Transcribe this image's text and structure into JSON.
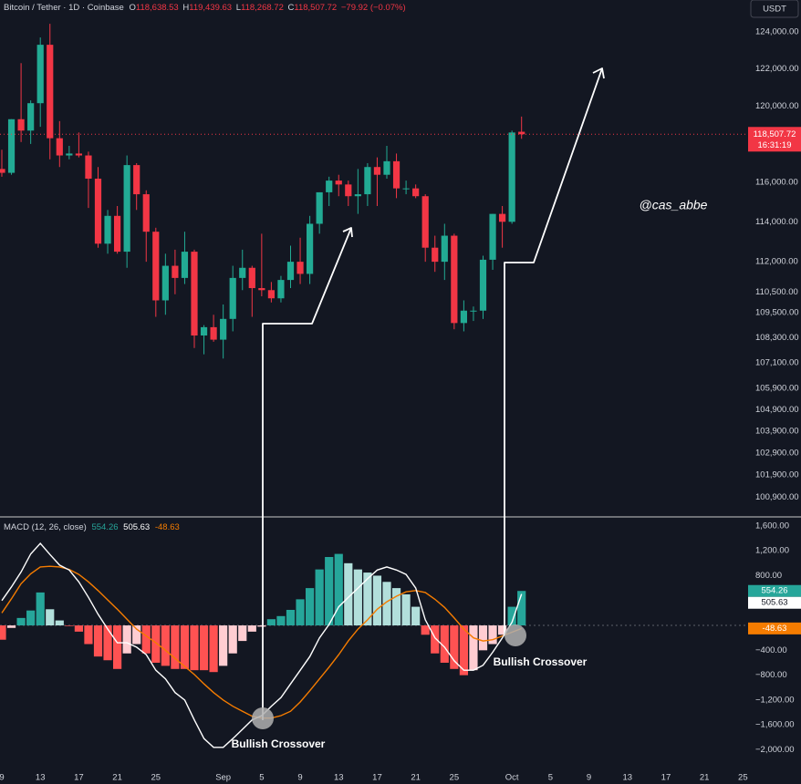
{
  "header": {
    "symbol": "Bitcoin / Tether · 1D · Coinbase",
    "open": {
      "label": "O",
      "value": "118,638.53"
    },
    "high": {
      "label": "H",
      "value": "119,439.63"
    },
    "low": {
      "label": "L",
      "value": "118,268.72"
    },
    "close": {
      "label": "C",
      "value": "118,507.72"
    },
    "change": "−79.92 (−0.07%)"
  },
  "currency": "USDT",
  "watermark": "@cas_abbe",
  "annotations": [
    "Bullish Crossover",
    "Bullish Crossover"
  ],
  "chart_data": [
    {
      "type": "candlestick",
      "categories": [
        "9",
        null,
        null,
        null,
        "13",
        null,
        null,
        null,
        "17",
        null,
        null,
        null,
        "21",
        null,
        null,
        null,
        "25",
        null,
        null,
        null,
        null,
        null,
        null,
        "Sep",
        null,
        null,
        null,
        "5",
        null,
        null,
        null,
        "9",
        null,
        null,
        null,
        "13",
        null,
        null,
        null,
        "17",
        null,
        null,
        null,
        "21",
        null,
        null,
        null,
        "25",
        null,
        null,
        null,
        null,
        null,
        "Oct",
        null,
        null,
        null,
        "5",
        null,
        null,
        null,
        "9",
        null,
        null,
        null,
        "13",
        null,
        null,
        null,
        "17",
        null,
        null,
        null,
        "21",
        null,
        null,
        null,
        "25"
      ],
      "open": [
        116700,
        116500,
        119300,
        118700,
        120150,
        123300,
        118300,
        117400,
        117500,
        117400,
        116200,
        112900,
        114300,
        112500,
        116900,
        115400,
        113500,
        110100,
        111800,
        111200,
        112500,
        108400,
        108800,
        108200,
        109200,
        111200,
        111700,
        110700,
        110600,
        110200,
        111100,
        112000,
        111400,
        113900,
        115500,
        116100,
        115900,
        115300,
        115400,
        116800,
        116400,
        117100,
        115700,
        115700,
        115300,
        112700,
        112000,
        113300,
        109000,
        109600,
        109600,
        112100,
        114400,
        114000,
        118638.53,
        null,
        null,
        null,
        null,
        null,
        null,
        null,
        null,
        null,
        null,
        null,
        null,
        null,
        null,
        null,
        null,
        null,
        null,
        null,
        null,
        null,
        null,
        null
      ],
      "high": [
        117700,
        119300,
        122300,
        120300,
        123700,
        124450,
        119200,
        117900,
        118600,
        117600,
        116800,
        114600,
        114800,
        117400,
        117000,
        115600,
        113700,
        112400,
        112600,
        113500,
        112600,
        108900,
        109400,
        109900,
        111800,
        112600,
        111800,
        113400,
        111000,
        111300,
        112800,
        113200,
        114300,
        115500,
        116300,
        116400,
        116100,
        116700,
        117000,
        117300,
        117900,
        117500,
        116100,
        115900,
        115400,
        113300,
        113900,
        113400,
        110100,
        109800,
        112300,
        114400,
        114800,
        118700,
        119439.63,
        null,
        null,
        null,
        null,
        null,
        null,
        null,
        null,
        null,
        null,
        null,
        null,
        null,
        null,
        null,
        null,
        null,
        null,
        null,
        null,
        null,
        null,
        null
      ],
      "low": [
        116300,
        116400,
        118100,
        118000,
        118900,
        117200,
        116800,
        117200,
        117300,
        114700,
        112700,
        112400,
        112400,
        111700,
        114600,
        112000,
        109300,
        109400,
        110400,
        110900,
        107800,
        107500,
        108100,
        107300,
        108600,
        110600,
        109300,
        110300,
        110000,
        110000,
        110700,
        110900,
        110900,
        113400,
        114800,
        115300,
        114800,
        114400,
        114800,
        114800,
        116200,
        115200,
        115400,
        115200,
        112000,
        111500,
        111100,
        108700,
        108600,
        109100,
        109200,
        111600,
        112700,
        113900,
        118268.72,
        null,
        null,
        null,
        null,
        null,
        null,
        null,
        null,
        null,
        null,
        null,
        null,
        null,
        null,
        null,
        null,
        null,
        null,
        null,
        null,
        null,
        null,
        null
      ],
      "close": [
        116500,
        119300,
        118700,
        120150,
        123300,
        118300,
        117400,
        117500,
        117400,
        116200,
        112900,
        114300,
        112500,
        116900,
        115400,
        113500,
        110100,
        111800,
        111200,
        112500,
        108400,
        108800,
        108200,
        109200,
        111200,
        111700,
        110700,
        110600,
        110200,
        111100,
        112000,
        111400,
        113900,
        115500,
        116100,
        115900,
        115300,
        115400,
        116800,
        116400,
        117100,
        115700,
        115700,
        115300,
        112700,
        112000,
        113300,
        109000,
        109600,
        109600,
        112100,
        114400,
        114000,
        118600,
        118507.72,
        null,
        null,
        null,
        null,
        null,
        null,
        null,
        null,
        null,
        null,
        null,
        null,
        null,
        null,
        null,
        null,
        null,
        null,
        null,
        null,
        null,
        null,
        null
      ],
      "up_color": "#22ab94",
      "down_color": "#f23645",
      "log_scale": true,
      "grid": false,
      "ylim": [
        100030,
        125770
      ],
      "yticks": [
        {
          "value": 124000,
          "label": "124,000.00"
        },
        {
          "value": 122000,
          "label": "122,000.00"
        },
        {
          "value": 120000,
          "label": "120,000.00"
        },
        {
          "value": 116000,
          "label": "116,000.00"
        },
        {
          "value": 114000,
          "label": "114,000.00"
        },
        {
          "value": 112000,
          "label": "112,000.00"
        },
        {
          "value": 110500,
          "label": "110,500.00"
        },
        {
          "value": 109500,
          "label": "109,500.00"
        },
        {
          "value": 108300,
          "label": "108,300.00"
        },
        {
          "value": 107100,
          "label": "107,100.00"
        },
        {
          "value": 105900,
          "label": "105,900.00"
        },
        {
          "value": 104900,
          "label": "104,900.00"
        },
        {
          "value": 103900,
          "label": "103,900.00"
        },
        {
          "value": 102900,
          "label": "102,900.00"
        },
        {
          "value": 101900,
          "label": "101,900.00"
        },
        {
          "value": 100900,
          "label": "100,900.00"
        }
      ],
      "last_price_label": "118,507.72",
      "countdown": "16:31:19"
    },
    {
      "type": "macd",
      "title": "MACD (12, 26, close)",
      "histogram": {
        "colors": [
          "#26a69a",
          "#b2dfdb",
          "#ff5252",
          "#ffcdd2"
        ],
        "values": [
          -230,
          -40,
          120,
          240,
          530,
          260,
          80,
          -10,
          -100,
          -300,
          -500,
          -560,
          -700,
          -450,
          -300,
          -450,
          -600,
          -650,
          -700,
          -700,
          -720,
          -720,
          -750,
          -650,
          -450,
          -250,
          -100,
          -20,
          100,
          150,
          250,
          420,
          600,
          900,
          1100,
          1150,
          1000,
          900,
          850,
          800,
          700,
          600,
          500,
          300,
          -150,
          -450,
          -600,
          -700,
          -800,
          -720,
          -400,
          -300,
          -150,
          300,
          554.26,
          null,
          null,
          null,
          null,
          null,
          null,
          null,
          null,
          null,
          null,
          null,
          null,
          null,
          null,
          null,
          null,
          null,
          null,
          null,
          null,
          null,
          null,
          null
        ]
      },
      "macd_line": {
        "color": "#ffffff",
        "values": [
          400,
          620,
          860,
          1150,
          1320,
          1140,
          970,
          890,
          700,
          450,
          180,
          -60,
          -280,
          -280,
          -350,
          -470,
          -720,
          -860,
          -1080,
          -1200,
          -1520,
          -1820,
          -1960,
          -1960,
          -1820,
          -1670,
          -1520,
          -1450,
          -1300,
          -1160,
          -940,
          -720,
          -500,
          -200,
          15,
          300,
          450,
          600,
          750,
          890,
          940,
          890,
          820,
          600,
          90,
          -200,
          -350,
          -570,
          -720,
          -720,
          -640,
          -430,
          -200,
          50,
          505.63,
          null,
          null,
          null,
          null,
          null,
          null,
          null,
          null,
          null,
          null,
          null,
          null,
          null,
          null,
          null,
          null,
          null,
          null,
          null,
          null,
          null,
          null,
          null
        ]
      },
      "signal_line": {
        "color": "#f57c00",
        "values": [
          200,
          430,
          670,
          830,
          940,
          950,
          940,
          900,
          820,
          700,
          560,
          410,
          260,
          100,
          -60,
          -170,
          -280,
          -400,
          -530,
          -660,
          -790,
          -940,
          -1080,
          -1200,
          -1300,
          -1380,
          -1460,
          -1490,
          -1490,
          -1450,
          -1380,
          -1230,
          -1050,
          -860,
          -670,
          -470,
          -250,
          -60,
          90,
          260,
          380,
          470,
          540,
          560,
          530,
          420,
          290,
          120,
          -60,
          -200,
          -250,
          -230,
          -170,
          -110,
          -48.63,
          null,
          null,
          null,
          null,
          null,
          null,
          null,
          null,
          null,
          null,
          null,
          null,
          null,
          null,
          null,
          null,
          null,
          null,
          null,
          null,
          null,
          null,
          null
        ]
      },
      "ylim": [
        -2330,
        1745
      ],
      "yticks": [
        {
          "value": 1600,
          "label": "1,600.00"
        },
        {
          "value": 1200,
          "label": "1,200.00"
        },
        {
          "value": 800,
          "label": "800.00"
        },
        {
          "value": -400,
          "label": "−400.00"
        },
        {
          "value": -800,
          "label": "−800.00"
        },
        {
          "value": -1200,
          "label": "−1,200.00"
        },
        {
          "value": -1600,
          "label": "−1,600.00"
        },
        {
          "value": -2000,
          "label": "−2,000.00"
        }
      ]
    }
  ]
}
